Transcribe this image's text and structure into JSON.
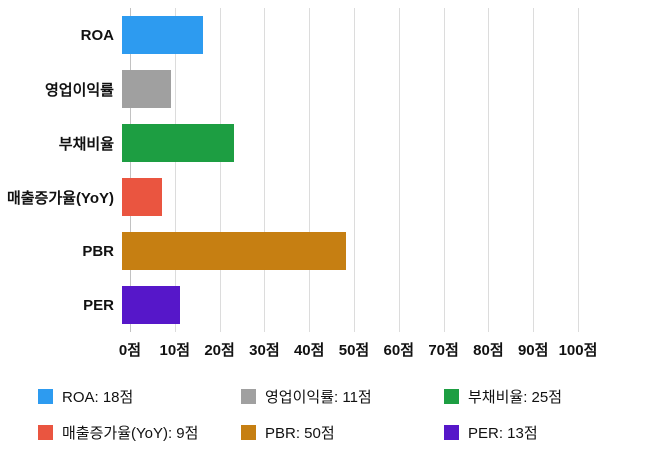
{
  "chart_data": {
    "type": "bar",
    "orientation": "horizontal",
    "title": "",
    "xlabel": "",
    "ylabel": "",
    "unit": "점",
    "categories": [
      "ROA",
      "영업이익률",
      "부채비율",
      "매출증가율(YoY)",
      "PBR",
      "PER"
    ],
    "values": [
      18,
      11,
      25,
      9,
      50,
      13
    ],
    "colors": [
      "#2d9bf0",
      "#a0a0a0",
      "#1d9e42",
      "#ea5540",
      "#c67f12",
      "#5617c9"
    ],
    "xlim": [
      0,
      100
    ],
    "x_ticks": [
      0,
      10,
      20,
      30,
      40,
      50,
      60,
      70,
      80,
      90,
      100
    ],
    "x_tick_labels": [
      "0점",
      "10점",
      "20점",
      "30점",
      "40점",
      "50점",
      "60점",
      "70점",
      "80점",
      "90점",
      "100점"
    ],
    "grid": true,
    "legend_position": "bottom",
    "legend": [
      {
        "label": "ROA: 18점",
        "color": "#2d9bf0"
      },
      {
        "label": "영업이익률: 11점",
        "color": "#a0a0a0"
      },
      {
        "label": "부채비율: 25점",
        "color": "#1d9e42"
      },
      {
        "label": "매출증가율(YoY): 9점",
        "color": "#ea5540"
      },
      {
        "label": "PBR: 50점",
        "color": "#c67f12"
      },
      {
        "label": "PER: 13점",
        "color": "#5617c9"
      }
    ]
  }
}
